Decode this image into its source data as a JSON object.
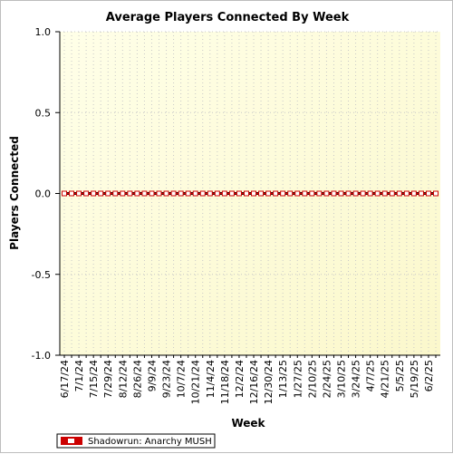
{
  "chart_data": {
    "type": "line",
    "title": "Average Players Connected By Week",
    "xlabel": "Week",
    "ylabel": "Players Connected",
    "ylim": [
      -1.0,
      1.0
    ],
    "yticks": [
      "1.0",
      "0.5",
      "0.0",
      "-0.5",
      "-1.0"
    ],
    "grid": true,
    "legend_position": "bottom-left",
    "x_tick_labels": [
      "6/17/24",
      "7/1/24",
      "7/15/24",
      "7/29/24",
      "8/12/24",
      "8/26/24",
      "9/9/24",
      "9/23/24",
      "10/7/24",
      "10/21/24",
      "11/4/24",
      "11/18/24",
      "12/2/24",
      "12/16/24",
      "12/30/24",
      "1/13/25",
      "1/27/25",
      "2/10/25",
      "2/24/25",
      "3/10/25",
      "3/24/25",
      "4/7/25",
      "4/21/25",
      "5/5/25",
      "5/19/25",
      "6/2/25"
    ],
    "x": [
      "6/17/24",
      "6/24/24",
      "7/1/24",
      "7/8/24",
      "7/15/24",
      "7/22/24",
      "7/29/24",
      "8/5/24",
      "8/12/24",
      "8/19/24",
      "8/26/24",
      "9/2/24",
      "9/9/24",
      "9/16/24",
      "9/23/24",
      "9/30/24",
      "10/7/24",
      "10/14/24",
      "10/21/24",
      "10/28/24",
      "11/4/24",
      "11/11/24",
      "11/18/24",
      "11/25/24",
      "12/2/24",
      "12/9/24",
      "12/16/24",
      "12/23/24",
      "12/30/24",
      "1/6/25",
      "1/13/25",
      "1/20/25",
      "1/27/25",
      "2/3/25",
      "2/10/25",
      "2/17/25",
      "2/24/25",
      "3/3/25",
      "3/10/25",
      "3/17/25",
      "3/24/25",
      "3/31/25",
      "4/7/25",
      "4/14/25",
      "4/21/25",
      "4/28/25",
      "5/5/25",
      "5/12/25",
      "5/19/25",
      "5/26/25",
      "6/2/25",
      "6/9/25"
    ],
    "series": [
      {
        "name": "Shadowrun: Anarchy MUSH",
        "color": "#cc0000",
        "values": [
          0,
          0,
          0,
          0,
          0,
          0,
          0,
          0,
          0,
          0,
          0,
          0,
          0,
          0,
          0,
          0,
          0,
          0,
          0,
          0,
          0,
          0,
          0,
          0,
          0,
          0,
          0,
          0,
          0,
          0,
          0,
          0,
          0,
          0,
          0,
          0,
          0,
          0,
          0,
          0,
          0,
          0,
          0,
          0,
          0,
          0,
          0,
          0,
          0,
          0,
          0,
          0
        ]
      }
    ]
  }
}
